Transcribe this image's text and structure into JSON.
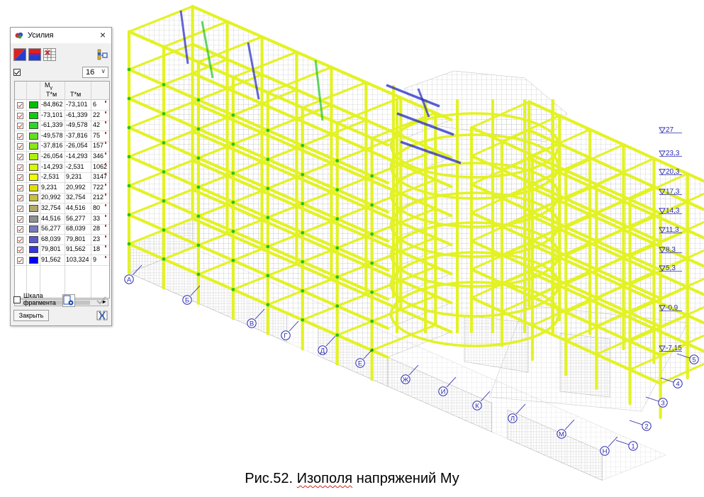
{
  "dialog": {
    "title": "Усилия",
    "close_glyph": "×",
    "icons": {
      "app": "forces-icon",
      "fill_mode": "isofield-fill-icon",
      "band_mode": "isoband-icon",
      "table_mode": "table-grid-icon",
      "scale_settings": "scale-settings-icon"
    },
    "levels_checked": true,
    "levels_value": "16",
    "quantity": "M",
    "quantity_sub": "y",
    "unit_from": "T*м",
    "unit_to": "T*м",
    "scale_checkbox_label_line1": "Шкала",
    "scale_checkbox_label_line2": "фрагмента",
    "scale_checked": false,
    "close_button": "Закрыть",
    "scroll_left": "◄",
    "scroll_right": "►",
    "apply_icon": "checkmark-icon",
    "legend": [
      {
        "from": "-84,862",
        "to": "-73,101",
        "count": "6",
        "color": "#00c000"
      },
      {
        "from": "-73,101",
        "to": "-61,339",
        "count": "22",
        "color": "#10cc10"
      },
      {
        "from": "-61,339",
        "to": "-49,578",
        "count": "42",
        "color": "#28d828"
      },
      {
        "from": "-49,578",
        "to": "-37,816",
        "count": "75",
        "color": "#60e020"
      },
      {
        "from": "-37,816",
        "to": "-26,054",
        "count": "157",
        "color": "#88e818"
      },
      {
        "from": "-26,054",
        "to": "-14,293",
        "count": "346",
        "color": "#b0f010"
      },
      {
        "from": "-14,293",
        "to": "-2,531",
        "count": "1062",
        "color": "#d8f808"
      },
      {
        "from": "-2,531",
        "to": "9,231",
        "count": "3147",
        "color": "#f0ff00"
      },
      {
        "from": "9,231",
        "to": "20,992",
        "count": "722",
        "color": "#e0e000"
      },
      {
        "from": "20,992",
        "to": "32,754",
        "count": "212",
        "color": "#c8c040"
      },
      {
        "from": "32,754",
        "to": "44,516",
        "count": "80",
        "color": "#b0a870"
      },
      {
        "from": "44,516",
        "to": "56,277",
        "count": "33",
        "color": "#909090"
      },
      {
        "from": "56,277",
        "to": "68,039",
        "count": "28",
        "color": "#7a7ab8"
      },
      {
        "from": "68,039",
        "to": "79,801",
        "count": "23",
        "color": "#5a5ad0"
      },
      {
        "from": "79,801",
        "to": "91,562",
        "count": "18",
        "color": "#3434e0"
      },
      {
        "from": "91,562",
        "to": "103,324",
        "count": "9",
        "color": "#0000f0"
      }
    ]
  },
  "model": {
    "level_marks": [
      "27",
      "23,3",
      "20,3",
      "17,3",
      "14,3",
      "11,3",
      "8,3",
      "5,3",
      "-0,9",
      "-7,15"
    ],
    "axis_letters": [
      "А",
      "Б",
      "В",
      "Г",
      "Д",
      "Е",
      "Ж",
      "И",
      "К",
      "Л",
      "М",
      "Н"
    ],
    "axis_numbers": [
      "1",
      "2",
      "3",
      "4",
      "5"
    ],
    "colors": {
      "frame": "#e3f224",
      "frame_stroke": "#b4c214",
      "mesh": "#b9b9b9",
      "positive": "#2228c8",
      "negative": "#22c422",
      "axis": "#2a2ab0",
      "level": "#2a2ab0"
    }
  },
  "caption": {
    "prefix": "Рис.52. ",
    "word": "Изополя",
    "suffix": " напряжений Му"
  }
}
